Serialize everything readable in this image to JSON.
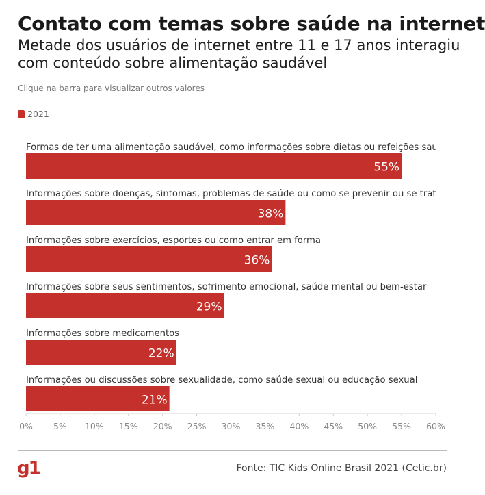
{
  "header": {
    "title": "Contato com temas sobre saúde na internet",
    "subtitle": "Metade dos usuários de internet entre 11 e 17 anos interagiu com conteúdo sobre alimentação saudável",
    "hint": "Clique na barra para visualizar outros valores"
  },
  "colors": {
    "bar": "#c4302b",
    "logo": "#c4302b"
  },
  "chart_data": {
    "type": "bar",
    "orientation": "horizontal",
    "series": [
      {
        "name": "2021",
        "color": "#c4302b"
      }
    ],
    "categories": [
      "Formas de ter uma alimentação saudável, como informações sobre dietas ou refeições sau",
      "Informações sobre doenças, sintomas, problemas de saúde ou como se prevenir ou se trat",
      "Informações sobre exercícios, esportes ou como entrar em forma",
      "Informações sobre seus sentimentos, sofrimento emocional, saúde mental ou bem-estar",
      "Informações sobre medicamentos",
      "Informações ou discussões sobre sexualidade, como saúde sexual ou educação sexual"
    ],
    "values": [
      55,
      38,
      36,
      29,
      22,
      21
    ],
    "value_labels": [
      "55%",
      "38%",
      "36%",
      "29%",
      "22%",
      "21%"
    ],
    "xlim": [
      0,
      60
    ],
    "xticks": [
      "0%",
      "5%",
      "10%",
      "15%",
      "20%",
      "25%",
      "30%",
      "35%",
      "40%",
      "45%",
      "50%",
      "55%",
      "60%"
    ],
    "legend_position": "top-left",
    "grid": false
  },
  "footer": {
    "logo": "g1",
    "source": "Fonte: TIC Kids Online Brasil 2021 (Cetic.br)"
  }
}
